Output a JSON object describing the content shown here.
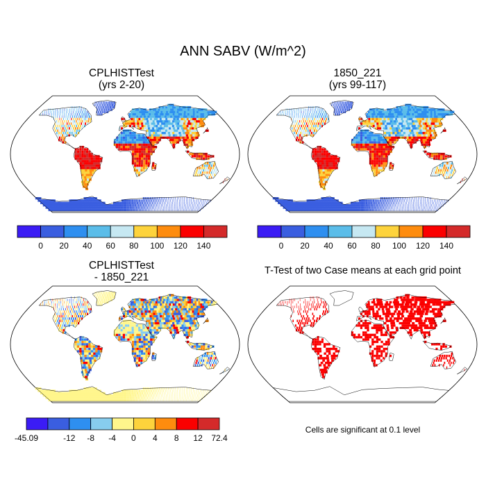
{
  "main_title": "ANN SABV (W/m^2)",
  "panels": [
    {
      "id": "case",
      "title_line1": "CPLHISTTest",
      "title_line2": "(yrs 2-20)"
    },
    {
      "id": "control",
      "title_line1": "1850_221",
      "title_line2": "(yrs 99-117)"
    },
    {
      "id": "diff",
      "title_line1": "CPLHISTTest",
      "title_line2": "- 1850_221"
    },
    {
      "id": "ttest",
      "title_line1": "T-Test of two Case means at each grid point",
      "title_line2": ""
    }
  ],
  "significance_note": "Cells are significant at 0.1 level",
  "chart_data": [
    {
      "type": "heatmap",
      "map_projection": "robinson",
      "panel": "case",
      "title": "CPLHISTTest (yrs 2-20)",
      "variable": "ANN SABV",
      "units": "W/m^2",
      "colorbar": {
        "levels": [
          "0",
          "20",
          "40",
          "60",
          "80",
          "100",
          "120",
          "140"
        ],
        "colors": [
          "#3b1cf5",
          "#3a5ee0",
          "#2e8ff0",
          "#5bbde9",
          "#c6e8f2",
          "#fdd33c",
          "#fe8c0e",
          "#fb0000",
          "#d42a2a"
        ]
      }
    },
    {
      "type": "heatmap",
      "map_projection": "robinson",
      "panel": "control",
      "title": "1850_221 (yrs 99-117)",
      "variable": "ANN SABV",
      "units": "W/m^2",
      "colorbar": {
        "levels": [
          "0",
          "20",
          "40",
          "60",
          "80",
          "100",
          "120",
          "140"
        ],
        "colors": [
          "#3b1cf5",
          "#3a5ee0",
          "#2e8ff0",
          "#5bbde9",
          "#c6e8f2",
          "#fdd33c",
          "#fe8c0e",
          "#fb0000",
          "#d42a2a"
        ]
      }
    },
    {
      "type": "heatmap",
      "map_projection": "robinson",
      "panel": "diff",
      "title": "CPLHISTTest - 1850_221",
      "variable": "ANN SABV difference",
      "units": "W/m^2",
      "colorbar": {
        "min": -45.09,
        "max": 72.4,
        "levels": [
          "-45.09",
          "-12",
          "-8",
          "-4",
          "0",
          "4",
          "8",
          "12",
          "72.4"
        ],
        "colors": [
          "#3b1cf5",
          "#3a5ee0",
          "#2e8ff0",
          "#87cdee",
          "#fff68c",
          "#fdd33c",
          "#fe8c0e",
          "#fb0000",
          "#d42a2a"
        ]
      }
    },
    {
      "type": "heatmap",
      "map_projection": "robinson",
      "panel": "ttest",
      "title": "T-Test of two Case means at each grid point",
      "significance_level": 0.1,
      "significant_color": "#fb0000"
    }
  ]
}
